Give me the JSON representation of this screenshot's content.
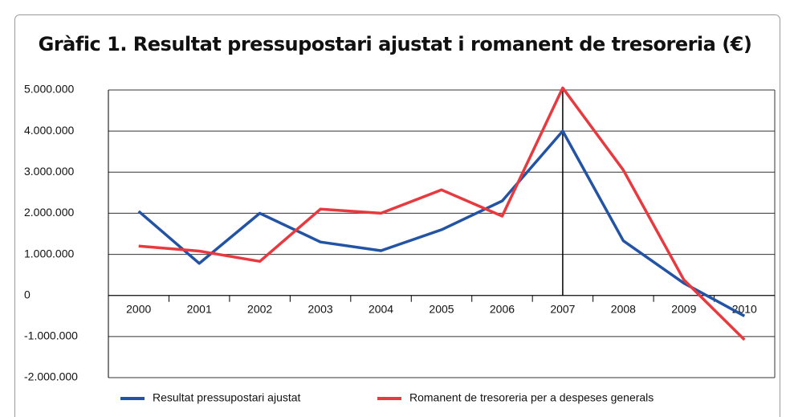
{
  "chart_data": {
    "type": "line",
    "title": "Gràfic 1. Resultat pressupostari ajustat i romanent de tresoreria (€)",
    "categories": [
      "2000",
      "2001",
      "2002",
      "2003",
      "2004",
      "2005",
      "2006",
      "2007",
      "2008",
      "2009",
      "2010"
    ],
    "series": [
      {
        "name": "Resultat pressupostari ajustat",
        "color": "#2353a4",
        "values": [
          2050000,
          780000,
          2000000,
          1300000,
          1090000,
          1600000,
          2300000,
          4000000,
          1330000,
          300000,
          -500000
        ]
      },
      {
        "name": "Romanent de tresoreria per a despeses generals",
        "color": "#e8393f",
        "values": [
          1200000,
          1080000,
          830000,
          2100000,
          2000000,
          2570000,
          1930000,
          5050000,
          3050000,
          380000,
          -1080000
        ]
      }
    ],
    "ylim": [
      -2000000,
      5000000
    ],
    "yticks": [
      {
        "value": -2000000,
        "label": "-2.000.000"
      },
      {
        "value": -1000000,
        "label": "-1.000.000"
      },
      0,
      {
        "value": 1000000,
        "label": "1.000.000"
      },
      {
        "value": 2000000,
        "label": "2.000.000"
      },
      {
        "value": 3000000,
        "label": "3.000.000"
      },
      {
        "value": 4000000,
        "label": "4.000.000"
      },
      {
        "value": 5000000,
        "label": "5.000.000"
      }
    ],
    "grid": true,
    "legend": "bottom"
  }
}
